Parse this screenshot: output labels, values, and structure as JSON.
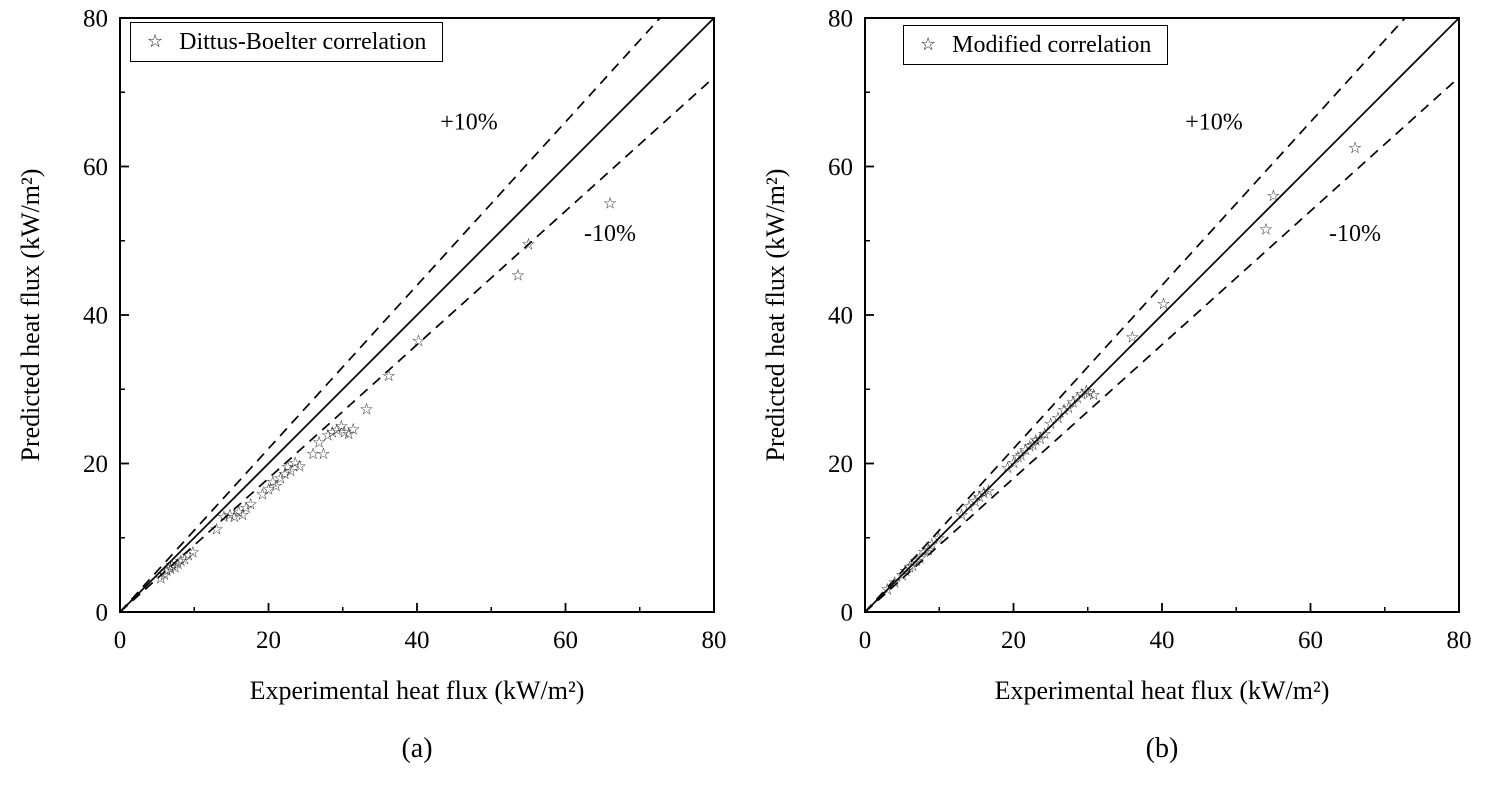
{
  "figure": {
    "background": "#ffffff",
    "text_color": "#000000",
    "line_color": "#000000"
  },
  "chart_data": [
    {
      "type": "scatter",
      "panel_label": "(a)",
      "legend": "Dittus-Boelter correlation",
      "marker": "☆",
      "marker_name": "open-star",
      "xlabel": "Experimental heat flux (kW/m²)",
      "ylabel": "Predicted heat flux (kW/m²)",
      "xlim": [
        0,
        80
      ],
      "ylim": [
        0,
        80
      ],
      "xticks": [
        0,
        20,
        40,
        60,
        80
      ],
      "yticks": [
        0,
        20,
        40,
        60,
        80
      ],
      "grid": false,
      "legend_position": "top-left-inside",
      "reference_lines": [
        {
          "name": "identity",
          "slope": 1.0,
          "style": "solid"
        },
        {
          "name": "plus-10-percent",
          "slope": 1.1,
          "style": "dashed"
        },
        {
          "name": "minus-10-percent",
          "slope": 0.9,
          "style": "dashed"
        }
      ],
      "annotations": [
        {
          "text": "+10%",
          "x": 47,
          "y": 65
        },
        {
          "text": "-10%",
          "x": 66,
          "y": 50
        }
      ],
      "points": [
        [
          5.5,
          4.6
        ],
        [
          6,
          5.1
        ],
        [
          6.3,
          5.6
        ],
        [
          6.8,
          5.9
        ],
        [
          7,
          6.4
        ],
        [
          7.4,
          6.1
        ],
        [
          7.8,
          6.6
        ],
        [
          8.2,
          7.0
        ],
        [
          8.7,
          7.2
        ],
        [
          9.2,
          7.7
        ],
        [
          9.8,
          8.1
        ],
        [
          13,
          11.2
        ],
        [
          14,
          12.9
        ],
        [
          14.8,
          13.2
        ],
        [
          15.4,
          12.9
        ],
        [
          16,
          13.6
        ],
        [
          16.5,
          13.2
        ],
        [
          17,
          14.1
        ],
        [
          17.6,
          14.6
        ],
        [
          19.2,
          15.9
        ],
        [
          20,
          16.6
        ],
        [
          20.6,
          17.6
        ],
        [
          21,
          17.1
        ],
        [
          21.6,
          18.1
        ],
        [
          22.2,
          18.7
        ],
        [
          22.6,
          19.6
        ],
        [
          23,
          19.1
        ],
        [
          23.6,
          20.2
        ],
        [
          24.2,
          19.7
        ],
        [
          26,
          21.4
        ],
        [
          26.8,
          22.9
        ],
        [
          27.4,
          21.4
        ],
        [
          28,
          23.9
        ],
        [
          28.6,
          24.3
        ],
        [
          29.2,
          24.6
        ],
        [
          29.8,
          25.1
        ],
        [
          30.2,
          24.3
        ],
        [
          30.8,
          24.1
        ],
        [
          31.4,
          24.7
        ],
        [
          33.2,
          27.4
        ],
        [
          36.2,
          31.9
        ],
        [
          40.2,
          36.6
        ],
        [
          53.6,
          45.4
        ],
        [
          55,
          49.6
        ],
        [
          66,
          55.1
        ]
      ]
    },
    {
      "type": "scatter",
      "panel_label": "(b)",
      "legend": "Modified correlation",
      "marker": "☆",
      "marker_name": "open-star",
      "xlabel": "Experimental heat flux (kW/m²)",
      "ylabel": "Predicted heat flux (kW/m²)",
      "xlim": [
        0,
        80
      ],
      "ylim": [
        0,
        80
      ],
      "xticks": [
        0,
        20,
        40,
        60,
        80
      ],
      "yticks": [
        0,
        20,
        40,
        60,
        80
      ],
      "grid": false,
      "legend_position": "top-left-inside",
      "reference_lines": [
        {
          "name": "identity",
          "slope": 1.0,
          "style": "solid"
        },
        {
          "name": "plus-10-percent",
          "slope": 1.1,
          "style": "dashed"
        },
        {
          "name": "minus-10-percent",
          "slope": 0.9,
          "style": "dashed"
        }
      ],
      "annotations": [
        {
          "text": "+10%",
          "x": 47,
          "y": 65
        },
        {
          "text": "-10%",
          "x": 66,
          "y": 50
        }
      ],
      "points": [
        [
          3,
          3.1
        ],
        [
          4,
          4.1
        ],
        [
          5,
          5.0
        ],
        [
          5.5,
          5.6
        ],
        [
          6,
          6.1
        ],
        [
          6.4,
          6.3
        ],
        [
          6.9,
          7.0
        ],
        [
          7.4,
          7.3
        ],
        [
          8,
          8.2
        ],
        [
          8.5,
          8.4
        ],
        [
          9,
          9.2
        ],
        [
          9.9,
          10.0
        ],
        [
          13,
          13.2
        ],
        [
          14,
          14.3
        ],
        [
          14.8,
          15.0
        ],
        [
          15.4,
          15.6
        ],
        [
          16,
          16.1
        ],
        [
          16.6,
          16.4
        ],
        [
          19.2,
          19.5
        ],
        [
          20,
          20.2
        ],
        [
          20.6,
          21.0
        ],
        [
          21,
          21.2
        ],
        [
          21.6,
          21.9
        ],
        [
          22.2,
          22.4
        ],
        [
          22.6,
          22.6
        ],
        [
          23,
          23.2
        ],
        [
          23.6,
          23.4
        ],
        [
          24.2,
          24.1
        ],
        [
          25,
          25.4
        ],
        [
          26,
          26.2
        ],
        [
          26.8,
          27.3
        ],
        [
          27.4,
          27.6
        ],
        [
          28,
          28.3
        ],
        [
          28.6,
          28.9
        ],
        [
          29.2,
          29.4
        ],
        [
          29.8,
          29.9
        ],
        [
          30.2,
          29.6
        ],
        [
          30.8,
          29.3
        ],
        [
          36,
          37.1
        ],
        [
          40.2,
          41.6
        ],
        [
          54,
          51.6
        ],
        [
          55,
          56.1
        ],
        [
          66,
          62.6
        ]
      ]
    }
  ]
}
